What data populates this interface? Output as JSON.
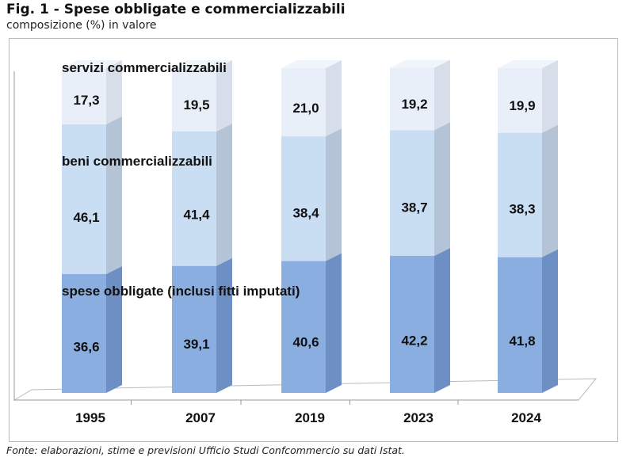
{
  "title": "Fig. 1 - Spese obbligate e commercializzabili",
  "subtitle": "composizione (%) in valore",
  "source": "Fonte: elaborazioni, stime e previsioni Ufficio Studi Confcommercio su dati Istat.",
  "chart_data": {
    "type": "bar",
    "stacked": true,
    "three_d": true,
    "categories": [
      "1995",
      "2007",
      "2019",
      "2023",
      "2024"
    ],
    "series": [
      {
        "name": "spese obbligate (inclusi fitti imputati)",
        "values": [
          36.6,
          39.1,
          40.6,
          42.2,
          41.8
        ],
        "labels": [
          "36,6",
          "39,1",
          "40,6",
          "42,2",
          "41,8"
        ],
        "color": "#8aaee0"
      },
      {
        "name": "beni commercializzabili",
        "values": [
          46.1,
          41.4,
          38.4,
          38.7,
          38.3
        ],
        "labels": [
          "46,1",
          "41,4",
          "38,4",
          "38,7",
          "38,3"
        ],
        "color": "#c9ddf3"
      },
      {
        "name": "servizi commercializzabili",
        "values": [
          17.3,
          19.5,
          21.0,
          19.2,
          19.9
        ],
        "labels": [
          "17,3",
          "19,5",
          "21,0",
          "19,2",
          "19,9"
        ],
        "color": "#e8eff9"
      }
    ],
    "ylim": [
      0,
      100
    ],
    "grid": false
  }
}
